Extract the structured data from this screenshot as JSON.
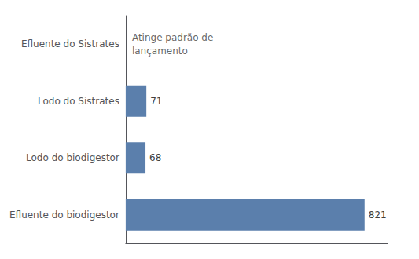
{
  "chart_data": {
    "type": "bar",
    "orientation": "horizontal",
    "categories": [
      "Efluente do biodigestor",
      "Lodo do biodigestor",
      "Lodo do Sistrates",
      "Efluente do Sistrates"
    ],
    "values": [
      821,
      68,
      71,
      0
    ],
    "value_labels": [
      "821",
      "68",
      "71",
      null
    ],
    "color": "#5b7fac",
    "xlim": [
      0,
      900
    ],
    "xticks": [],
    "data_labels": true,
    "tick_labels": "y",
    "grid": false,
    "annotation": {
      "text": "Atinge padrão de\nlançamento",
      "category": "Efluente do Sistrates"
    }
  }
}
